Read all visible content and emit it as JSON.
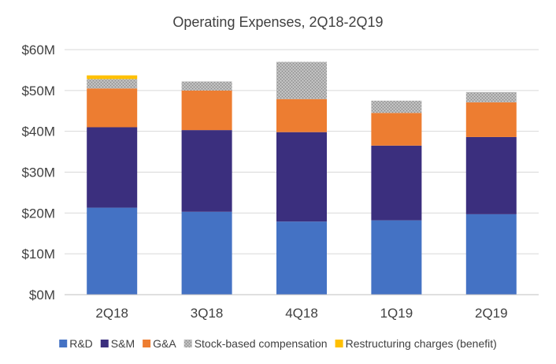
{
  "chart_data": {
    "type": "bar",
    "stacked": true,
    "title": "Operating Expenses, 2Q18-2Q19",
    "xlabel": "",
    "ylabel": "",
    "ylim": [
      0,
      60
    ],
    "y_tick_values": [
      0,
      10,
      20,
      30,
      40,
      50,
      60
    ],
    "y_tick_labels": [
      "$0M",
      "$10M",
      "$20M",
      "$30M",
      "$40M",
      "$50M",
      "$60M"
    ],
    "grid": true,
    "legend_position": "bottom",
    "categories": [
      "2Q18",
      "3Q18",
      "4Q18",
      "1Q19",
      "2Q19"
    ],
    "series": [
      {
        "name": "R&D",
        "color": "#4472C4",
        "values": [
          21.3,
          20.3,
          17.9,
          18.2,
          19.7
        ]
      },
      {
        "name": "S&M",
        "color": "#3B2F7E",
        "values": [
          19.7,
          20.0,
          21.9,
          18.3,
          18.9
        ]
      },
      {
        "name": "G&A",
        "color": "#ED7D31",
        "values": [
          9.5,
          9.7,
          8.1,
          8.0,
          8.5
        ]
      },
      {
        "name": "Stock-based compensation",
        "color": "#A5A5A5",
        "pattern": "dotted",
        "values": [
          2.3,
          2.2,
          9.1,
          3.0,
          2.5
        ]
      },
      {
        "name": "Restructuring charges (benefit)",
        "color": "#FFC000",
        "values": [
          0.9,
          0,
          0,
          0,
          0
        ]
      }
    ]
  }
}
